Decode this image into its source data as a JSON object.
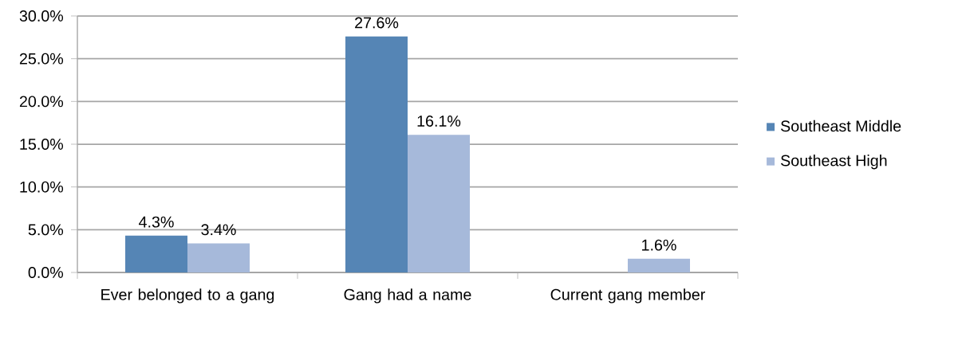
{
  "chart_data": {
    "type": "bar",
    "categories": [
      "Ever belonged to a gang",
      "Gang had a name",
      "Current gang member"
    ],
    "series": [
      {
        "name": "Southeast Middle",
        "color": "#5585b5",
        "values": [
          4.3,
          27.6,
          null
        ],
        "value_labels": [
          "4.3%",
          "27.6%",
          null
        ]
      },
      {
        "name": "Southeast High",
        "color": "#a6b9da",
        "values": [
          3.4,
          16.1,
          1.6
        ],
        "value_labels": [
          "3.4%",
          "16.1%",
          "1.6%"
        ]
      }
    ],
    "ylim": [
      0,
      30
    ],
    "yticks": [
      {
        "value": 0,
        "label": "0.0%"
      },
      {
        "value": 5,
        "label": "5.0%"
      },
      {
        "value": 10,
        "label": "10.0%"
      },
      {
        "value": 15,
        "label": "15.0%"
      },
      {
        "value": 20,
        "label": "20.0%"
      },
      {
        "value": 25,
        "label": "25.0%"
      },
      {
        "value": 30,
        "label": "30.0%"
      }
    ],
    "grid": "y",
    "legend": "right"
  }
}
